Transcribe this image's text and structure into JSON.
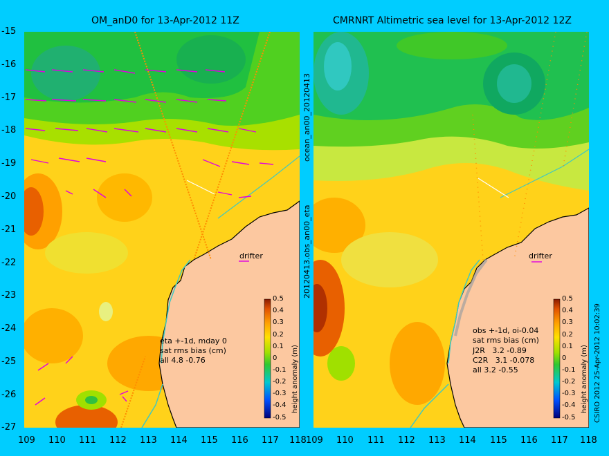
{
  "panels": [
    {
      "title": "OM_anD0 for 13-Apr-2012 11Z",
      "annotation": [
        "eta +-1d, mday 0",
        "sat rms bias (cm)",
        "all 4.8 -0.76"
      ],
      "drifter_label": "drifter"
    },
    {
      "title": "CMRNRT Altimetric sea level  for 13-Apr-2012 12Z",
      "annotation": [
        "obs +-1d, oi-0.04",
        "sat rms bias (cm)",
        "J2R   3.2 -0.89",
        "C2R   3.1 -0.078",
        "all 3.2 -0.55"
      ],
      "drifter_label": "drifter"
    }
  ],
  "side_labels": {
    "top": "ocean_an00_20120413",
    "bottom": "20120413.obs_an00_eta"
  },
  "credit": "CSIRO 2012   25-Apr-2012 10:02:39",
  "axes": {
    "x_ticks": [
      "109",
      "110",
      "111",
      "112",
      "113",
      "114",
      "115",
      "116",
      "117",
      "118"
    ],
    "x_ticks_right": [
      "109",
      "110",
      "111",
      "112",
      "113",
      "114",
      "115",
      "116",
      "117",
      "118"
    ],
    "y_ticks": [
      "-15",
      "-16",
      "-17",
      "-18",
      "-19",
      "-20",
      "-21",
      "-22",
      "-23",
      "-24",
      "-25",
      "-26",
      "-27"
    ],
    "xlim": [
      109,
      118
    ],
    "ylim": [
      -27,
      -15
    ]
  },
  "colorbar": {
    "label": "height anomaly (m)",
    "ticks": [
      "0.5",
      "0.4",
      "0.3",
      "0.2",
      "0.1",
      "0",
      "-0.1",
      "-0.2",
      "-0.3",
      "-0.4",
      "-0.5"
    ],
    "range": [
      -0.5,
      0.5
    ]
  },
  "colors": {
    "background": "#00cdff",
    "land": "#fcc8a0",
    "coastline": "#000000",
    "vector": "#e000e0",
    "track": "#ff8c00",
    "contour_light": "#40c8c0"
  }
}
